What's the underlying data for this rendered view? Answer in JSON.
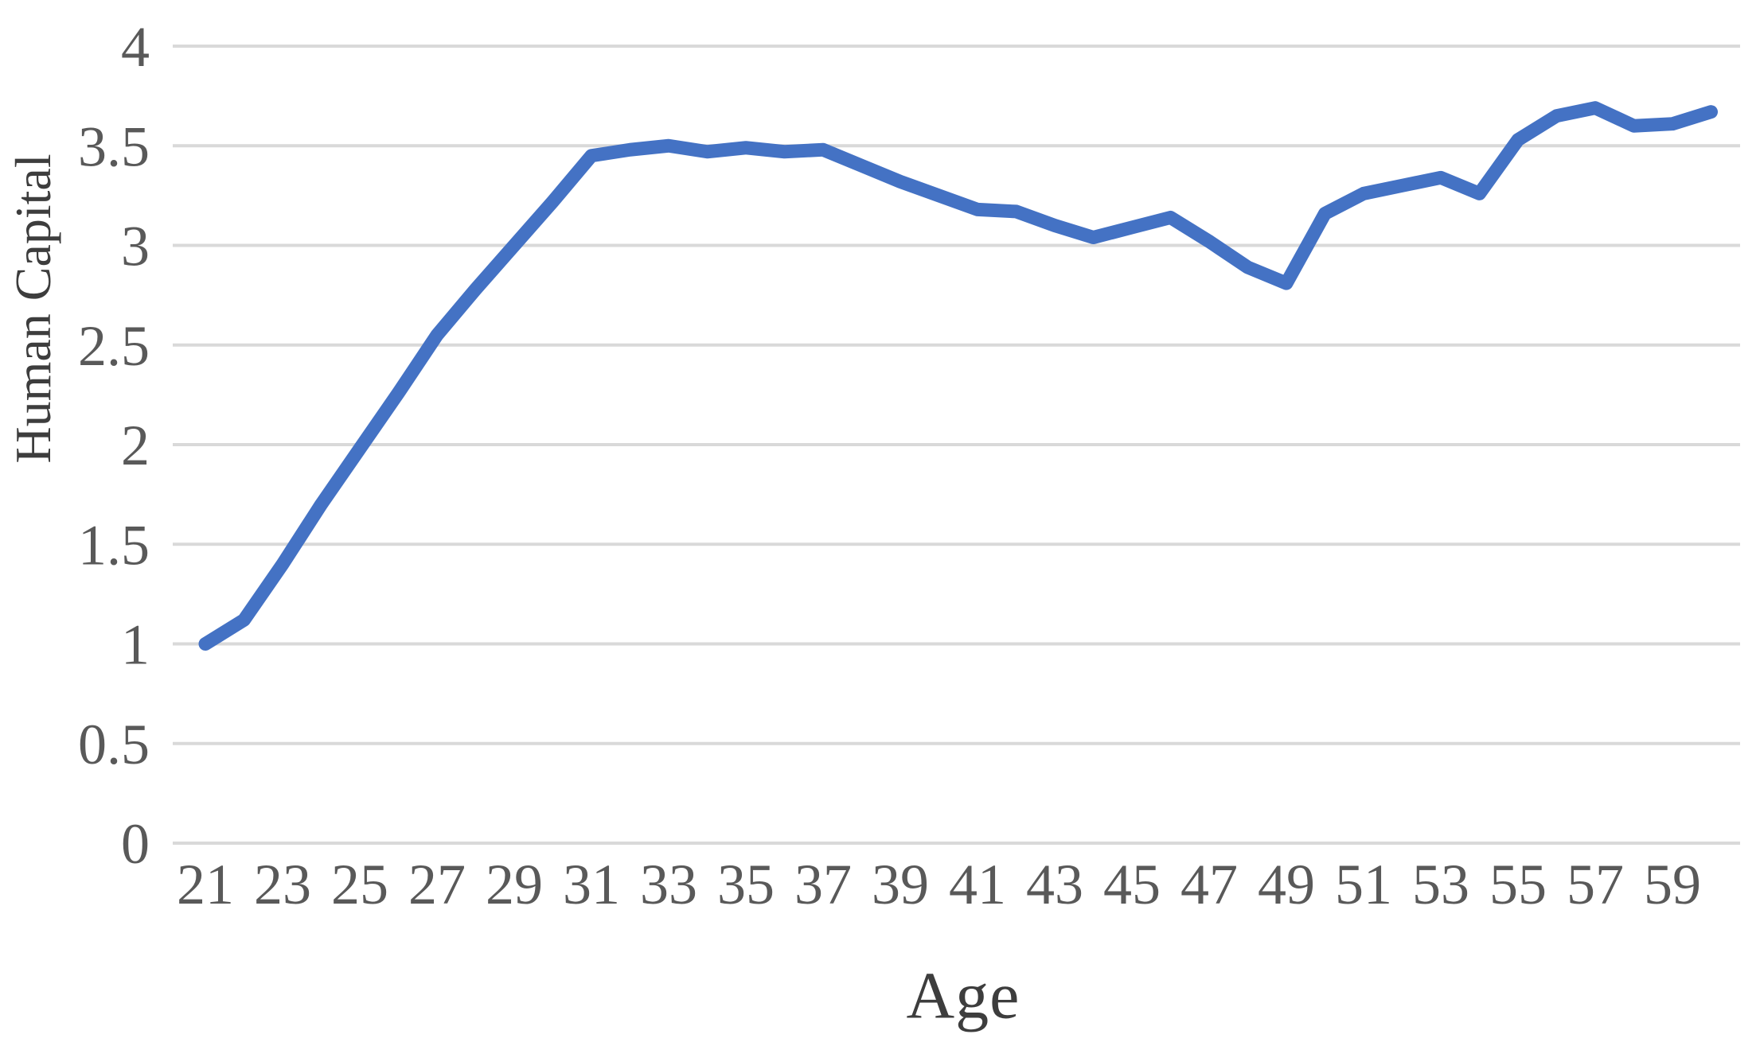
{
  "chart_data": {
    "type": "line",
    "title": "",
    "xlabel": "Age",
    "ylabel": "Human Capital",
    "x": [
      21,
      22,
      23,
      24,
      25,
      26,
      27,
      28,
      29,
      30,
      31,
      32,
      33,
      34,
      35,
      36,
      37,
      38,
      39,
      40,
      41,
      42,
      43,
      44,
      45,
      46,
      47,
      48,
      49,
      50,
      51,
      52,
      53,
      54,
      55,
      56,
      57,
      58,
      59,
      60
    ],
    "series": [
      {
        "name": "Human Capital",
        "values": [
          1.0,
          1.12,
          1.4,
          1.7,
          1.98,
          2.26,
          2.55,
          2.78,
          3.0,
          3.22,
          3.45,
          3.48,
          3.5,
          3.47,
          3.49,
          3.47,
          3.48,
          3.4,
          3.32,
          3.25,
          3.18,
          3.17,
          3.1,
          3.04,
          3.09,
          3.14,
          3.02,
          2.89,
          2.81,
          3.16,
          3.26,
          3.3,
          3.34,
          3.26,
          3.53,
          3.65,
          3.69,
          3.6,
          3.61,
          3.67
        ]
      }
    ],
    "x_tick_labels": [
      "21",
      "23",
      "25",
      "27",
      "29",
      "31",
      "33",
      "35",
      "37",
      "39",
      "41",
      "43",
      "45",
      "47",
      "49",
      "51",
      "53",
      "55",
      "57",
      "59"
    ],
    "x_tick_values": [
      21,
      23,
      25,
      27,
      29,
      31,
      33,
      35,
      37,
      39,
      41,
      43,
      45,
      47,
      49,
      51,
      53,
      55,
      57,
      59
    ],
    "y_tick_labels": [
      "0",
      "0.5",
      "1",
      "1.5",
      "2",
      "2.5",
      "3",
      "3.5",
      "4"
    ],
    "y_tick_values": [
      0,
      0.5,
      1,
      1.5,
      2,
      2.5,
      3,
      3.5,
      4
    ],
    "xlim": [
      21,
      60
    ],
    "ylim": [
      0,
      4
    ],
    "grid": "horizontal",
    "legend": "none",
    "colors": {
      "line": "#4472C4",
      "gridline": "#D9D9D9",
      "tick_text": "#595959",
      "title_text": "#3d3d3d",
      "background": "#FFFFFF"
    }
  }
}
